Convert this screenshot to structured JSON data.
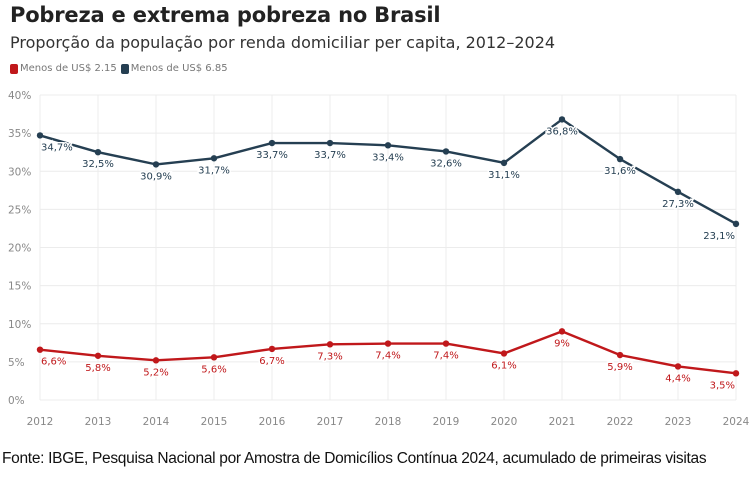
{
  "chart_data": {
    "type": "line",
    "title": "Pobreza e extrema pobreza no Brasil",
    "subtitle": "Proporção da população por renda domiciliar per capita, 2012–2024",
    "xlabel": "",
    "ylabel": "",
    "x": [
      "2012",
      "2013",
      "2014",
      "2015",
      "2016",
      "2017",
      "2018",
      "2019",
      "2020",
      "2021",
      "2022",
      "2023",
      "2024"
    ],
    "ylim": [
      0,
      40
    ],
    "yticks": [
      0,
      5,
      10,
      15,
      20,
      25,
      30,
      35,
      40
    ],
    "ytick_labels": [
      "0%",
      "5%",
      "10%",
      "15%",
      "20%",
      "25%",
      "30%",
      "35%",
      "40%"
    ],
    "grid": true,
    "legend_position": "top-left",
    "series": [
      {
        "name": "Menos de US$ 2.15",
        "color": "#c0181b",
        "values": [
          6.6,
          5.8,
          5.2,
          5.6,
          6.7,
          7.3,
          7.4,
          7.4,
          6.1,
          9.0,
          5.9,
          4.4,
          3.5
        ],
        "labels": [
          "6,6%",
          "5,8%",
          "5,2%",
          "5,6%",
          "6,7%",
          "7,3%",
          "7,4%",
          "7,4%",
          "6,1%",
          "9%",
          "5,9%",
          "4,4%",
          "3,5%"
        ]
      },
      {
        "name": "Menos de US$ 6.85",
        "color": "#253f52",
        "values": [
          34.7,
          32.5,
          30.9,
          31.7,
          33.7,
          33.7,
          33.4,
          32.6,
          31.1,
          36.8,
          31.6,
          27.3,
          23.1
        ],
        "labels": [
          "34,7%",
          "32,5%",
          "30,9%",
          "31,7%",
          "33,7%",
          "33,7%",
          "33,4%",
          "32,6%",
          "31,1%",
          "36,8%",
          "31,6%",
          "27,3%",
          "23,1%"
        ]
      }
    ],
    "source": "Fonte: IBGE, Pesquisa Nacional por Amostra de Domicílios Contínua 2024, acumulado de primeiras visitas"
  }
}
